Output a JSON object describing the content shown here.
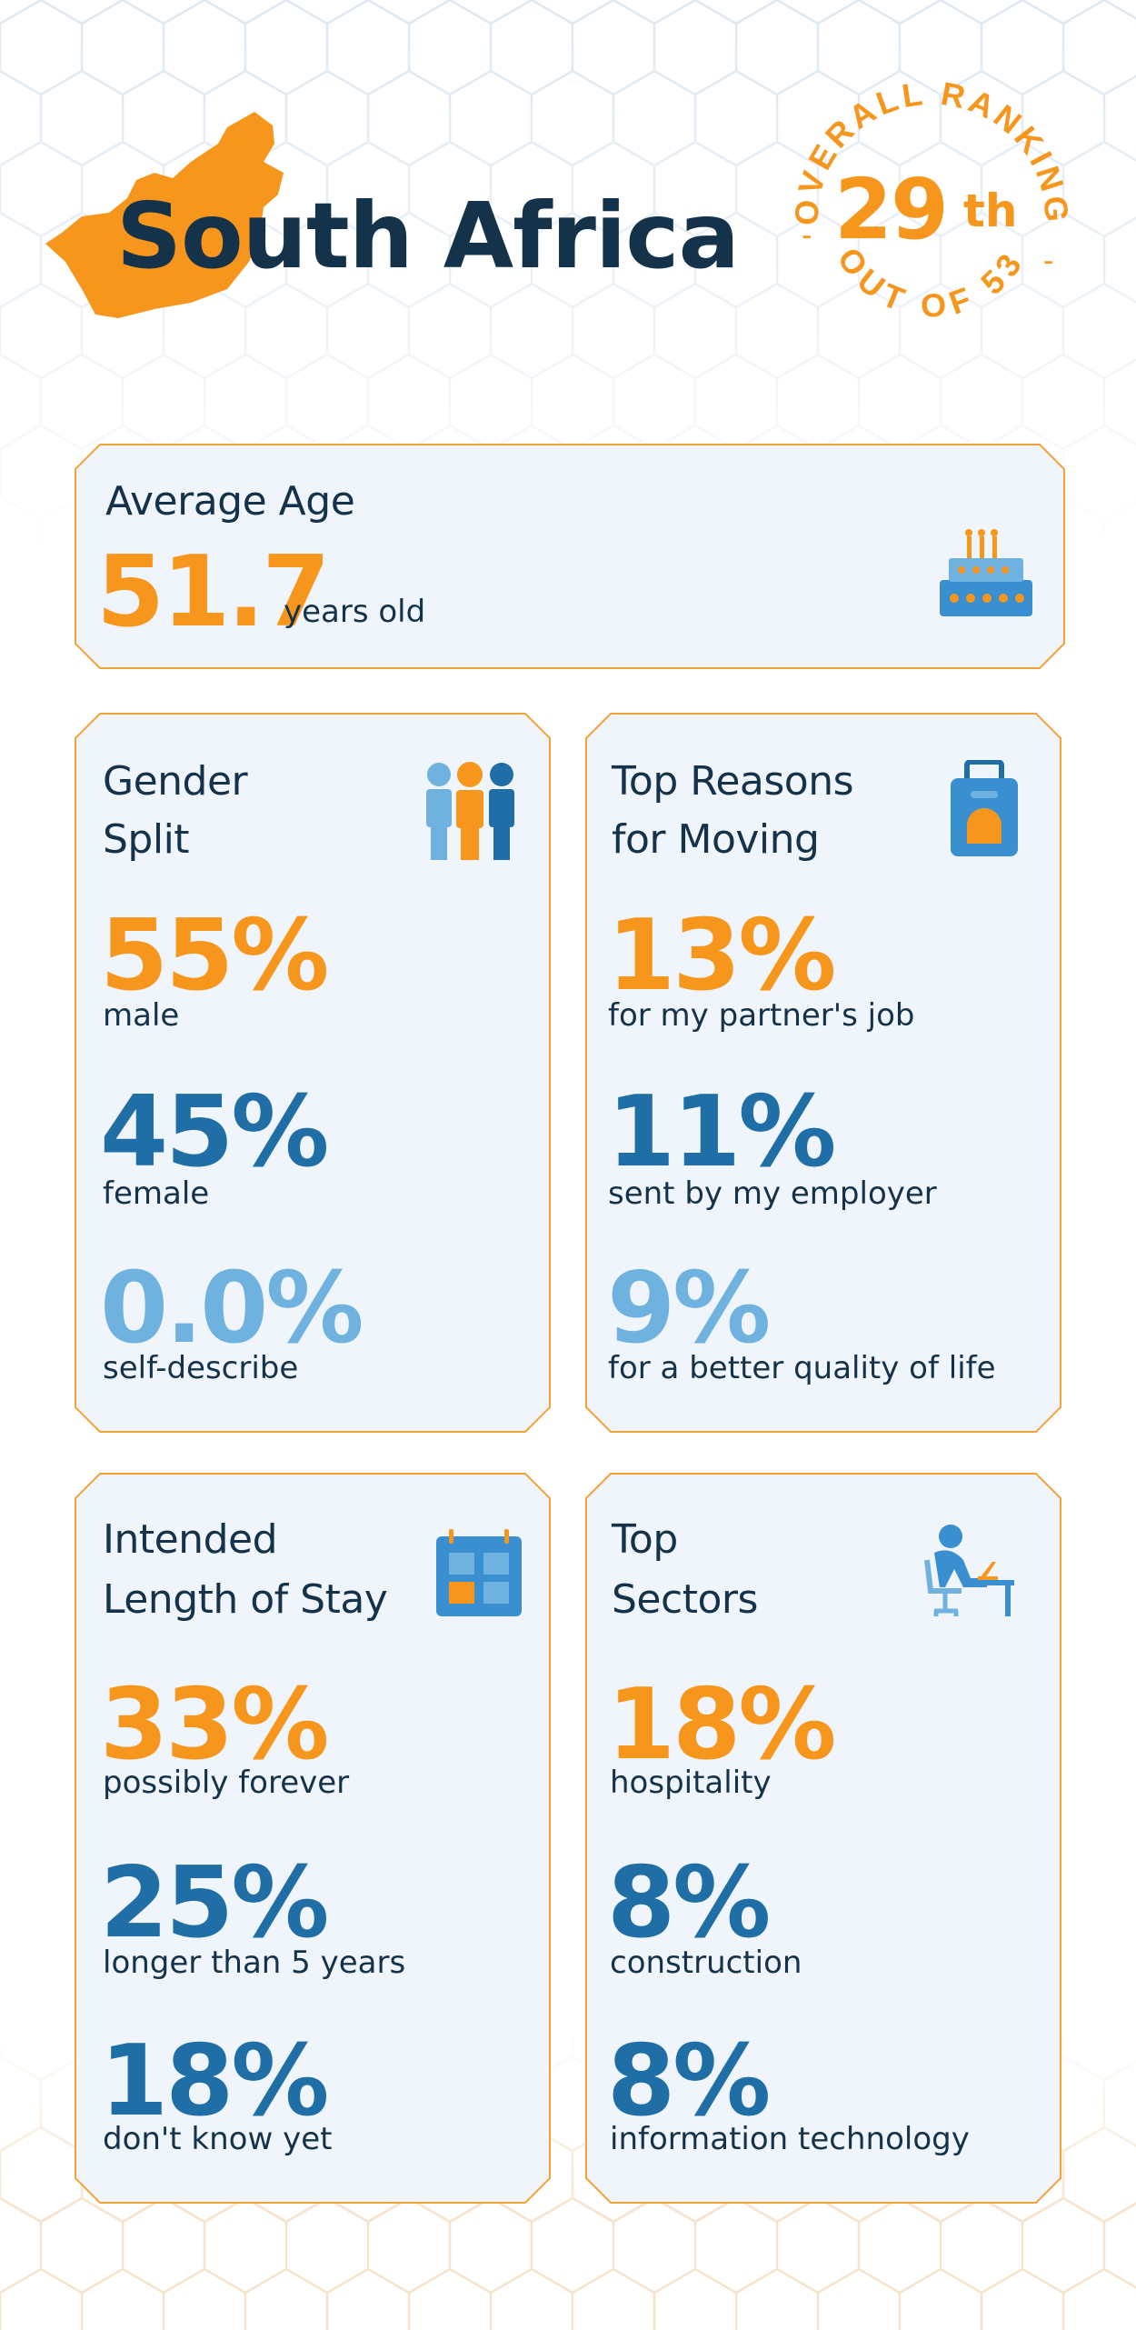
{
  "header": {
    "country": "South Africa",
    "ranking_top_text": "OVERALL RANKING",
    "ranking_bottom_text": "OUT OF 53",
    "rank_number": "29",
    "rank_suffix": "th",
    "rank_dash": "-"
  },
  "age": {
    "title": "Average Age",
    "value": "51.7",
    "unit": "years old",
    "icon": "birthday-cake-icon"
  },
  "gender": {
    "title_line1": "Gender",
    "title_line2": "Split",
    "icon": "people-group-icon",
    "stats": [
      {
        "value": "55%",
        "label": "male"
      },
      {
        "value": "45%",
        "label": "female"
      },
      {
        "value": "0.0%",
        "label": "self-describe"
      }
    ]
  },
  "reasons": {
    "title_line1": "Top Reasons",
    "title_line2": "for Moving",
    "icon": "suitcase-icon",
    "stats": [
      {
        "value": "13%",
        "label": "for my partner's job"
      },
      {
        "value": "11%",
        "label": "sent by my employer"
      },
      {
        "value": "9%",
        "label": "for a better quality of life"
      }
    ]
  },
  "stay": {
    "title_line1": "Intended",
    "title_line2": "Length of Stay",
    "icon": "calendar-icon",
    "stats": [
      {
        "value": "33%",
        "label": "possibly forever"
      },
      {
        "value": "25%",
        "label": "longer than 5 years"
      },
      {
        "value": "18%",
        "label": "don't know yet"
      }
    ]
  },
  "sectors": {
    "title_line1": "Top",
    "title_line2": "Sectors",
    "icon": "person-at-desk-icon",
    "stats": [
      {
        "value": "18%",
        "label": "hospitality"
      },
      {
        "value": "8%",
        "label": "construction"
      },
      {
        "value": "8%",
        "label": "information technology"
      }
    ]
  },
  "colors": {
    "orange": "#f7961c",
    "dark_blue": "#1f6ea6",
    "light_blue": "#6fb2e0",
    "navy_text": "#14324a",
    "card_bg": "#eff5fb"
  }
}
